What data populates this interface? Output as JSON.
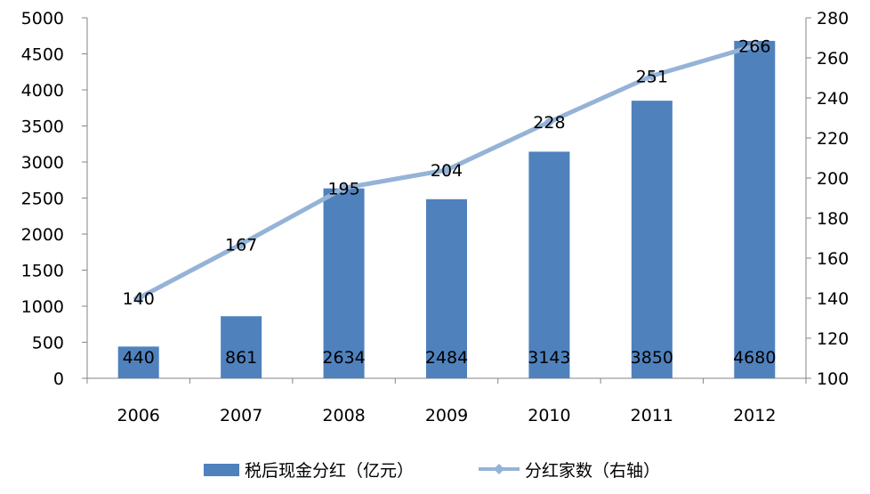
{
  "chart_data": {
    "type": "bar+line",
    "categories": [
      "2006",
      "2007",
      "2008",
      "2009",
      "2010",
      "2011",
      "2012"
    ],
    "series": [
      {
        "name": "税后现金分红（亿元）",
        "type": "bar",
        "axis": "left",
        "color": "#4F81BD",
        "values": [
          440,
          861,
          2634,
          2484,
          3143,
          3850,
          4680
        ]
      },
      {
        "name": "分红家数（右轴）",
        "type": "line",
        "axis": "right",
        "color": "#95B3D7",
        "values": [
          140,
          167,
          195,
          204,
          228,
          251,
          266
        ]
      }
    ],
    "y_left": {
      "min": 0,
      "max": 5000,
      "step": 500,
      "ticks": [
        "0",
        "500",
        "1000",
        "1500",
        "2000",
        "2500",
        "3000",
        "3500",
        "4000",
        "4500",
        "5000"
      ]
    },
    "y_right": {
      "min": 100,
      "max": 280,
      "step": 20,
      "ticks": [
        "100",
        "120",
        "140",
        "160",
        "180",
        "200",
        "220",
        "240",
        "260",
        "280"
      ]
    },
    "grid": false,
    "legend_position": "bottom"
  }
}
